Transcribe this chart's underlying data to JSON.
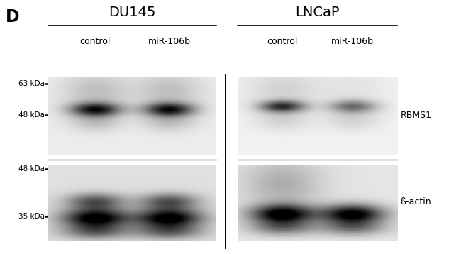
{
  "bg_color": "#ffffff",
  "text_color": "#000000",
  "panel_label": "D",
  "group_labels": [
    "DU145",
    "LNCaP"
  ],
  "col_labels": [
    "control",
    "miR-106b"
  ],
  "marker_labels_top": [
    "63 kDa",
    "48 kDa"
  ],
  "marker_labels_bottom": [
    "48 kDa",
    "35 kDa"
  ],
  "right_labels": [
    "RBMS1",
    "ß-actin"
  ],
  "fig_width": 6.5,
  "fig_height": 3.58,
  "dpi": 100
}
